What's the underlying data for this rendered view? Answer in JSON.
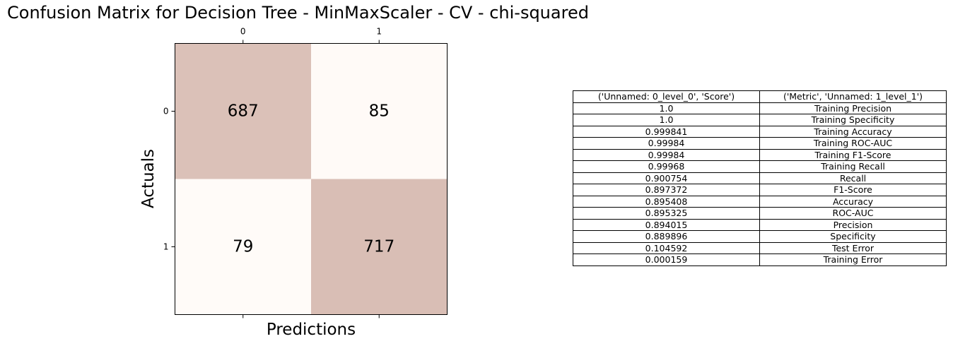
{
  "chart_data": [
    {
      "type": "heatmap",
      "title": "Confusion Matrix for Decision Tree - MinMaxScaler - CV - chi-squared",
      "xlabel": "Predictions",
      "ylabel": "Actuals",
      "x_ticks": [
        "0",
        "1"
      ],
      "y_ticks": [
        "0",
        "1"
      ],
      "matrix": [
        [
          687,
          85
        ],
        [
          79,
          717
        ]
      ],
      "colors": {
        "low": "#fffbf8",
        "high": "#d9beb5"
      }
    },
    {
      "type": "table",
      "columns": [
        "('Unnamed: 0_level_0', 'Score')",
        "('Metric', 'Unnamed: 1_level_1')"
      ],
      "rows": [
        [
          "1.0",
          "Training Precision"
        ],
        [
          "1.0",
          "Training Specificity"
        ],
        [
          "0.999841",
          "Training Accuracy"
        ],
        [
          "0.99984",
          "Training ROC-AUC"
        ],
        [
          "0.99984",
          "Training F1-Score"
        ],
        [
          "0.99968",
          "Training Recall"
        ],
        [
          "0.900754",
          "Recall"
        ],
        [
          "0.897372",
          "F1-Score"
        ],
        [
          "0.895408",
          "Accuracy"
        ],
        [
          "0.895325",
          "ROC-AUC"
        ],
        [
          "0.894015",
          "Precision"
        ],
        [
          "0.889896",
          "Specificity"
        ],
        [
          "0.104592",
          "Test Error"
        ],
        [
          "0.000159",
          "Training Error"
        ]
      ]
    }
  ]
}
